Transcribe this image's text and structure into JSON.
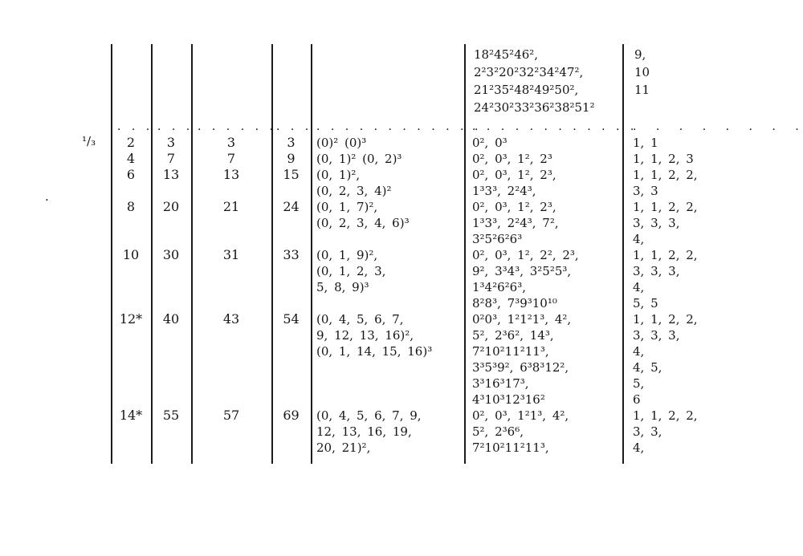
{
  "page_background": "#ffffff",
  "ink_color": "#151515",
  "row_label": "¹/₃",
  "stray_mark": ".",
  "top_block": {
    "products": [
      "18²45²46²,",
      "2²3²20²32²34²47²,",
      "21²35²48²49²50²,",
      "24²30²33²36²38²51²"
    ],
    "counts": [
      "9,",
      "10",
      "11"
    ]
  },
  "dot_row": {
    "segments": [
      ". . .",
      ". . .",
      ". . . . . .",
      ". . .",
      ". . . . . . . . . . . .",
      ". . . . . . . . . . . .",
      ". . . . . . . ."
    ]
  },
  "groups": [
    {
      "c2": "2",
      "c3": "3",
      "c4": "3",
      "c5": "3",
      "c6": [
        "(0)² (0)³"
      ],
      "c7": [
        "0², 0³"
      ],
      "c8": [
        "1, 1"
      ]
    },
    {
      "c2": "4",
      "c3": "7",
      "c4": "7",
      "c5": "9",
      "c6": [
        "(0, 1)² (0, 2)³"
      ],
      "c7": [
        "0², 0³, 1², 2³"
      ],
      "c8": [
        "1, 1, 2, 3"
      ]
    },
    {
      "c2": "6",
      "c3": "13",
      "c4": "13",
      "c5": "15",
      "c6": [
        "(0, 1)²,",
        "(0, 2, 3, 4)²"
      ],
      "c7": [
        "0², 0³, 1², 2³,",
        "1³3³, 2²4³,"
      ],
      "c8": [
        "1, 1, 2, 2,",
        "3, 3"
      ]
    },
    {
      "c2": "8",
      "c3": "20",
      "c4": "21",
      "c5": "24",
      "c6": [
        "(0, 1, 7)²,",
        "(0, 2, 3, 4, 6)³"
      ],
      "c7": [
        "0², 0³, 1², 2³,",
        "1³3³, 2²4³, 7²,",
        "3²5²6²6³"
      ],
      "c8": [
        "1, 1, 2, 2,",
        "3, 3, 3,",
        "4,"
      ]
    },
    {
      "c2": "10",
      "c3": "30",
      "c4": "31",
      "c5": "33",
      "c6": [
        "(0, 1, 9)²,",
        "(0, 1, 2, 3,",
        "5, 8, 9)³"
      ],
      "c7": [
        "0², 0³, 1², 2², 2³,",
        "9², 3³4³, 3²5²5³,",
        "1³4²6²6³,",
        "8²8³, 7³9³10¹⁰"
      ],
      "c8": [
        "1, 1, 2, 2,",
        "3, 3, 3,",
        "4,",
        "5, 5"
      ]
    },
    {
      "c2": "12*",
      "c3": "40",
      "c4": "43",
      "c5": "54",
      "c6": [
        "(0, 4, 5, 6, 7,",
        "9, 12, 13, 16)²,",
        "(0, 1, 14, 15, 16)³"
      ],
      "c7": [
        "0²0³, 1²1²1³, 4²,",
        "5², 2³6², 14³,",
        "7²10²11²11³,",
        "3³5³9², 6³8³12²,",
        "3³16³17³,",
        "4³10³12³16²"
      ],
      "c8": [
        "1, 1, 2, 2,",
        "3, 3, 3,",
        "4,",
        "4, 5,",
        "5,",
        "6"
      ]
    },
    {
      "c2": "14*",
      "c3": "55",
      "c4": "57",
      "c5": "69",
      "c6": [
        "(0, 4, 5, 6, 7, 9,",
        "12, 13, 16, 19,",
        "20, 21)²,"
      ],
      "c7": [
        "0², 0³, 1²1³, 4²,",
        "5², 2³6⁶,",
        "7²10²11²11³,"
      ],
      "c8": [
        "1, 1, 2, 2,",
        "3, 3,",
        "4,"
      ]
    }
  ]
}
